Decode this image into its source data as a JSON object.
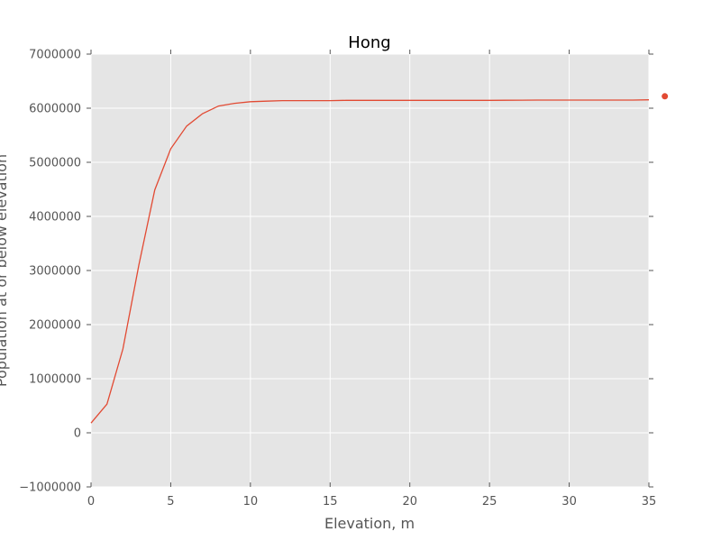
{
  "chart_data": {
    "type": "line",
    "title": "Hong",
    "xlabel": "Elevation, m",
    "ylabel": "Population at or below elevation",
    "xlim": [
      0,
      35
    ],
    "ylim": [
      -1000000,
      7000000
    ],
    "xticks": [
      0,
      5,
      10,
      15,
      20,
      25,
      30,
      35
    ],
    "yticks": [
      -1000000,
      0,
      1000000,
      2000000,
      3000000,
      4000000,
      5000000,
      6000000,
      7000000
    ],
    "grid": true,
    "series": [
      {
        "color": "#e24a33",
        "x": [
          0,
          1,
          2,
          3,
          4,
          5,
          6,
          7,
          8,
          9,
          10,
          11,
          12,
          13,
          14,
          15,
          16,
          17,
          18,
          19,
          20,
          21,
          22,
          23,
          24,
          25,
          26,
          27,
          28,
          29,
          30,
          31,
          32,
          33,
          34,
          35
        ],
        "y": [
          180000,
          530000,
          1550000,
          3100000,
          4490000,
          5250000,
          5670000,
          5900000,
          6040000,
          6090000,
          6120000,
          6130000,
          6140000,
          6140000,
          6140000,
          6140000,
          6145000,
          6145000,
          6145000,
          6145000,
          6145000,
          6145000,
          6145000,
          6145000,
          6145000,
          6145000,
          6147000,
          6148000,
          6150000,
          6150000,
          6150000,
          6150000,
          6150000,
          6150000,
          6150000,
          6155000
        ]
      },
      {
        "color": "#e24a33",
        "marker": "dot",
        "x": [
          36
        ],
        "y": [
          6220000
        ]
      }
    ]
  }
}
